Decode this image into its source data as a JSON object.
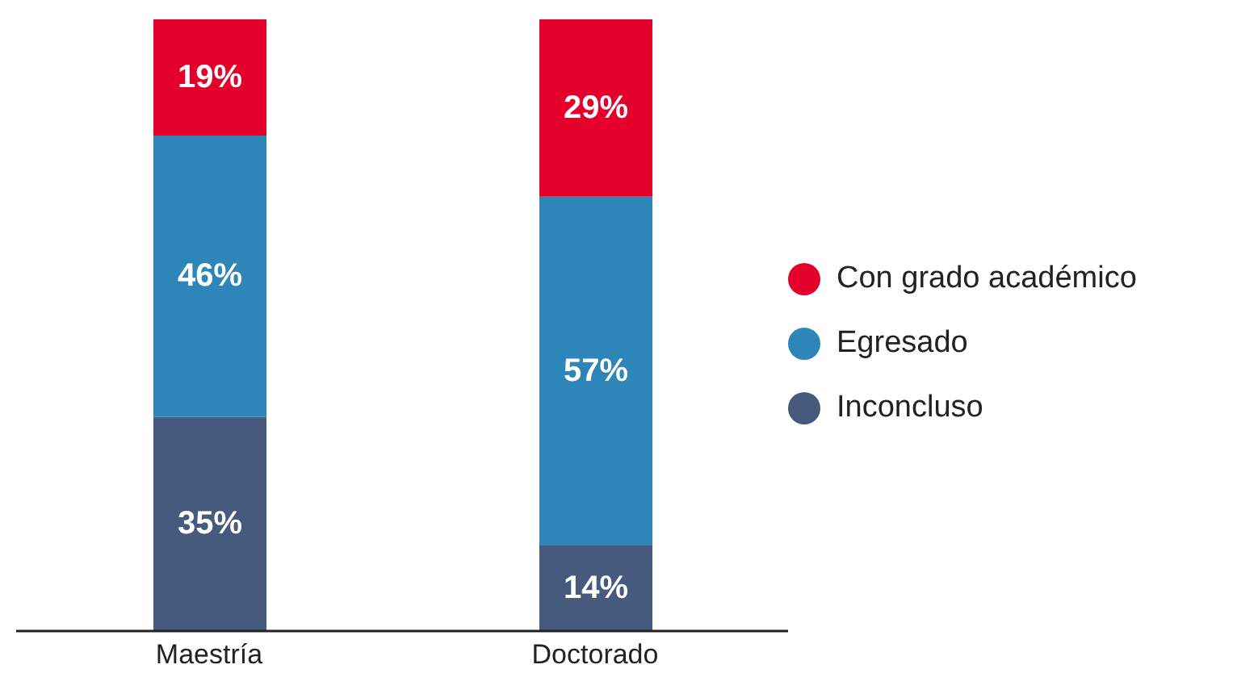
{
  "chart_data": {
    "type": "bar",
    "stacked": true,
    "categories": [
      "Maestría",
      "Doctorado"
    ],
    "ylim": [
      0,
      100
    ],
    "tick_labels": "x",
    "grid": false,
    "legend": "right",
    "series": [
      {
        "name": "Inconcluso",
        "color": "#465a7e",
        "values": [
          35,
          14
        ],
        "value_labels": [
          "35%",
          "14%"
        ]
      },
      {
        "name": "Egresado",
        "color": "#2e86b8",
        "values": [
          46,
          57
        ],
        "value_labels": [
          "46%",
          "57%"
        ]
      },
      {
        "name": "Con grado académico",
        "color": "#e4002b",
        "values": [
          19,
          29
        ],
        "value_labels": [
          "19%",
          "29%"
        ]
      }
    ]
  }
}
